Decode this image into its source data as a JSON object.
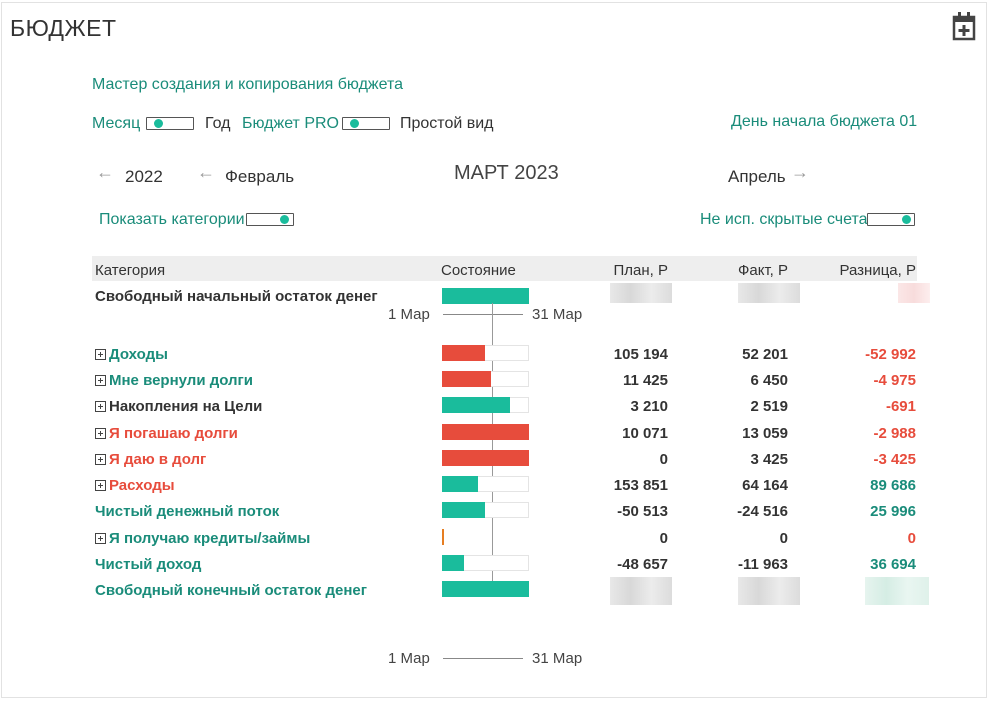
{
  "header": {
    "title": "БЮДЖЕТ",
    "add_icon": "calendar-plus-icon"
  },
  "wizard_link": "Мастер создания и копирования бюджета",
  "toggles": {
    "month": "Месяц",
    "year": "Год",
    "budget_pro": "Бюджет PRO",
    "simple_view": "Простой вид",
    "show_categories": "Показать категории",
    "hidden_accounts": "Не исп. скрытые счета"
  },
  "budget_start_day": "День начала бюджета 01",
  "navigation": {
    "prev_year": "2022",
    "prev_month": "Февраль",
    "current": "МАРТ 2023",
    "next_month": "Апрель",
    "left_arrow": "←",
    "right_arrow": "→"
  },
  "table": {
    "headers": {
      "category": "Категория",
      "state": "Состояние",
      "plan": "План, Р",
      "fact": "Факт, Р",
      "diff": "Разница, Р"
    },
    "opening": {
      "name": "Свободный начальный остаток денег",
      "date_start": "1 Мар",
      "date_end": "31 Мар"
    },
    "rows": [
      {
        "name": "Доходы",
        "plan": "105 194",
        "fact": "52 201",
        "diff": "-52 992"
      },
      {
        "name": "Мне вернули долги",
        "plan": "11 425",
        "fact": "6 450",
        "diff": "-4 975"
      },
      {
        "name": "Накопления на Цели",
        "plan": "3 210",
        "fact": "2 519",
        "diff": "-691"
      },
      {
        "name": "Я погашаю долги",
        "plan": "10 071",
        "fact": "13 059",
        "diff": "-2 988"
      },
      {
        "name": "Я даю в долг",
        "plan": "0",
        "fact": "3 425",
        "diff": "-3 425"
      },
      {
        "name": "Расходы",
        "plan": "153 851",
        "fact": "64 164",
        "diff": "89 686"
      },
      {
        "name": "Чистый денежный поток",
        "plan": "-50 513",
        "fact": "-24 516",
        "diff": "25 996"
      },
      {
        "name": "Я получаю кредиты/займы",
        "plan": "0",
        "fact": "0",
        "diff": "0"
      },
      {
        "name": "Чистый доход",
        "plan": "-48 657",
        "fact": "-11 963",
        "diff": "36 694"
      }
    ],
    "closing": {
      "name": "Свободный конечный остаток денег"
    },
    "footer_dates": {
      "start": "1 Мар",
      "end": "31 Мар"
    }
  },
  "colors": {
    "teal": "#1abc9c",
    "red": "#e74c3c",
    "text_teal": "#1a8c7a"
  }
}
